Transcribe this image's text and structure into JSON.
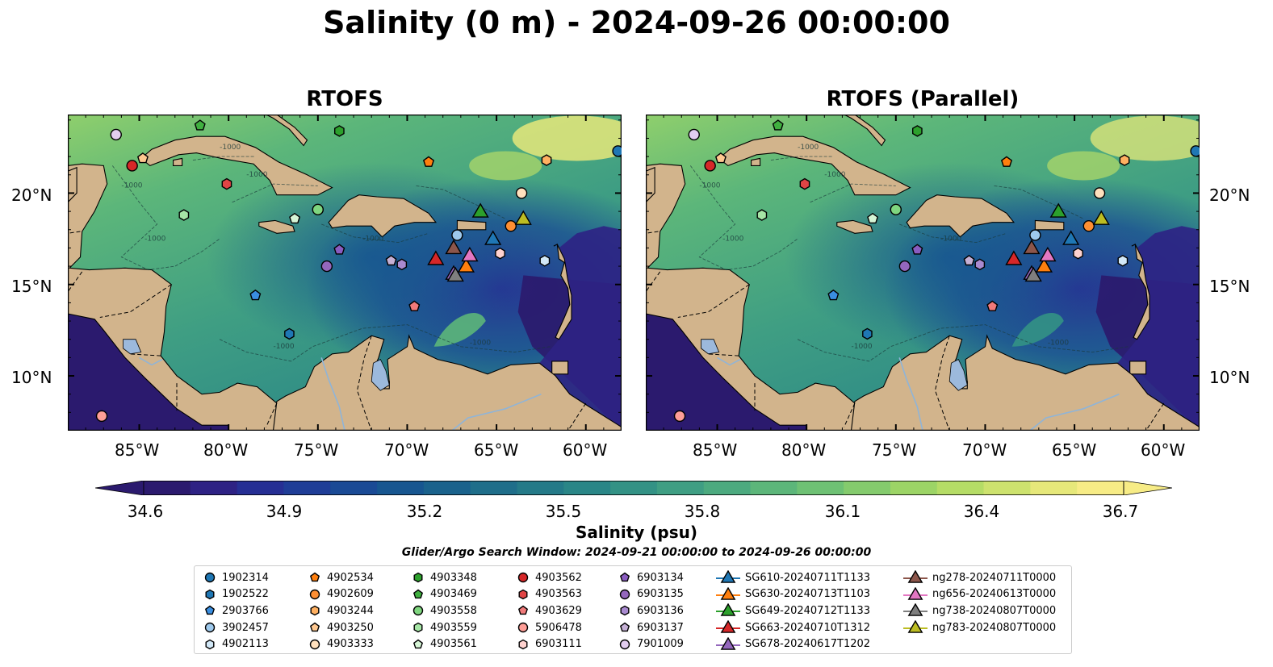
{
  "title": "Salinity (0 m) - 2024-09-26 00:00:00",
  "panels": [
    {
      "title": "RTOFS"
    },
    {
      "title": "RTOFS (Parallel)"
    }
  ],
  "lat_labels": [
    "20°N",
    "15°N",
    "10°N"
  ],
  "lon_labels": [
    "85°W",
    "80°W",
    "75°W",
    "70°W",
    "65°W",
    "60°W"
  ],
  "colorbar": {
    "ticks": [
      "34.6",
      "34.9",
      "35.2",
      "35.5",
      "35.8",
      "36.1",
      "36.4",
      "36.7"
    ],
    "label": "Salinity (psu)",
    "colors": [
      "#2b1a6e",
      "#2e2284",
      "#262f94",
      "#1f3d97",
      "#1a4a95",
      "#175690",
      "#1a628c",
      "#1f6e8a",
      "#247a88",
      "#2a8687",
      "#339285",
      "#3f9e83",
      "#4caa7f",
      "#5cb67a",
      "#6ec174",
      "#84cb6d",
      "#9cd466",
      "#b5dc66",
      "#cde26e",
      "#e6e87a",
      "#f7ec86"
    ]
  },
  "contour_label": "-1000",
  "search_window": "Glider/Argo Search Window: 2024-09-21 00:00:00 to 2024-09-26 00:00:00",
  "legend_columns": [
    [
      {
        "label": "1902314",
        "marker": "circle",
        "color": "#1f77b4"
      },
      {
        "label": "1902522",
        "marker": "hexagon",
        "color": "#1f77b4"
      },
      {
        "label": "2903766",
        "marker": "pentagon",
        "color": "#3a8ee0"
      },
      {
        "label": "3902457",
        "marker": "circle",
        "color": "#9ec9ec"
      },
      {
        "label": "4902113",
        "marker": "hexagon",
        "color": "#d2e8f7"
      }
    ],
    [
      {
        "label": "4902534",
        "marker": "pentagon",
        "color": "#ff7f0e"
      },
      {
        "label": "4902609",
        "marker": "circle",
        "color": "#ff8f33"
      },
      {
        "label": "4903244",
        "marker": "hexagon",
        "color": "#ffb061"
      },
      {
        "label": "4903250",
        "marker": "pentagon",
        "color": "#ffc890"
      },
      {
        "label": "4903333",
        "marker": "circle",
        "color": "#ffe0bd"
      }
    ],
    [
      {
        "label": "4903348",
        "marker": "hexagon",
        "color": "#2ca02c"
      },
      {
        "label": "4903469",
        "marker": "pentagon",
        "color": "#40b040"
      },
      {
        "label": "4903558",
        "marker": "circle",
        "color": "#7fd67f"
      },
      {
        "label": "4903559",
        "marker": "hexagon",
        "color": "#a6e6a6"
      },
      {
        "label": "4903561",
        "marker": "pentagon",
        "color": "#d6f5d6"
      }
    ],
    [
      {
        "label": "4903562",
        "marker": "circle",
        "color": "#d62728"
      },
      {
        "label": "4903563",
        "marker": "hexagon",
        "color": "#e04445"
      },
      {
        "label": "4903629",
        "marker": "pentagon",
        "color": "#f07a7a"
      },
      {
        "label": "5906478",
        "marker": "circle",
        "color": "#ff9e97"
      },
      {
        "label": "6903111",
        "marker": "hexagon",
        "color": "#ffd2cf"
      }
    ],
    [
      {
        "label": "6903134",
        "marker": "pentagon",
        "color": "#8a5cc0"
      },
      {
        "label": "6903135",
        "marker": "circle",
        "color": "#9467bd"
      },
      {
        "label": "6903136",
        "marker": "hexagon",
        "color": "#a98ad0"
      },
      {
        "label": "6903137",
        "marker": "pentagon",
        "color": "#c5b0d5"
      },
      {
        "label": "7901009",
        "marker": "circle",
        "color": "#e2cdf0"
      }
    ],
    [
      {
        "label": "SG610-20240711T1133",
        "marker": "triangle",
        "color": "#1f77b4"
      },
      {
        "label": "SG630-20240713T1103",
        "marker": "triangle",
        "color": "#ff7f0e"
      },
      {
        "label": "SG649-20240712T1133",
        "marker": "triangle",
        "color": "#2ca02c"
      },
      {
        "label": "SG663-20240710T1312",
        "marker": "triangle",
        "color": "#d62728"
      },
      {
        "label": "SG678-20240617T1202",
        "marker": "triangle",
        "color": "#9467bd"
      }
    ],
    [
      {
        "label": "ng278-20240711T0000",
        "marker": "triangle",
        "color": "#8c564b"
      },
      {
        "label": "ng656-20240613T0000",
        "marker": "triangle",
        "color": "#e377c2"
      },
      {
        "label": "ng738-20240807T0000",
        "marker": "triangle",
        "color": "#7f7f7f"
      },
      {
        "label": "ng783-20240807T0000",
        "marker": "triangle",
        "color": "#bcbd22"
      }
    ]
  ],
  "map_points": [
    {
      "label": "1902314",
      "lon": -58.2,
      "lat": 22.3
    },
    {
      "label": "1902522",
      "lon": -76.6,
      "lat": 12.3
    },
    {
      "label": "2903766",
      "lon": -78.5,
      "lat": 14.4
    },
    {
      "label": "3902457",
      "lon": -67.2,
      "lat": 17.7
    },
    {
      "label": "4902113",
      "lon": -62.3,
      "lat": 16.3
    },
    {
      "label": "4902534",
      "lon": -68.8,
      "lat": 21.7
    },
    {
      "label": "4902609",
      "lon": -64.2,
      "lat": 18.2
    },
    {
      "label": "4903244",
      "lon": -62.2,
      "lat": 21.8
    },
    {
      "label": "4903250",
      "lon": -84.8,
      "lat": 21.9
    },
    {
      "label": "4903333",
      "lon": -63.6,
      "lat": 20.0
    },
    {
      "label": "4903348",
      "lon": -73.8,
      "lat": 23.4
    },
    {
      "label": "4903469",
      "lon": -81.6,
      "lat": 23.7
    },
    {
      "label": "4903558",
      "lon": -75.0,
      "lat": 19.1
    },
    {
      "label": "4903559",
      "lon": -82.5,
      "lat": 18.8
    },
    {
      "label": "4903561",
      "lon": -76.3,
      "lat": 18.6
    },
    {
      "label": "4903562",
      "lon": -85.4,
      "lat": 21.5
    },
    {
      "label": "4903563",
      "lon": -80.1,
      "lat": 20.5
    },
    {
      "label": "4903629",
      "lon": -69.6,
      "lat": 13.8
    },
    {
      "label": "5906478",
      "lon": -87.1,
      "lat": 7.8
    },
    {
      "label": "6903111",
      "lon": -64.8,
      "lat": 16.7
    },
    {
      "label": "6903134",
      "lon": -73.8,
      "lat": 16.9
    },
    {
      "label": "6903135",
      "lon": -74.5,
      "lat": 16.0
    },
    {
      "label": "6903136",
      "lon": -70.3,
      "lat": 16.1
    },
    {
      "label": "6903137",
      "lon": -70.9,
      "lat": 16.3
    },
    {
      "label": "7901009",
      "lon": -86.3,
      "lat": 23.2
    },
    {
      "label": "SG610-20240711T1133",
      "lon": -65.2,
      "lat": 17.5
    },
    {
      "label": "SG630-20240713T1103",
      "lon": -66.7,
      "lat": 16.0
    },
    {
      "label": "SG649-20240712T1133",
      "lon": -65.9,
      "lat": 19.0
    },
    {
      "label": "SG663-20240710T1312",
      "lon": -68.4,
      "lat": 16.4
    },
    {
      "label": "SG678-20240617T1202",
      "lon": -67.4,
      "lat": 15.6
    },
    {
      "label": "ng278-20240711T0000",
      "lon": -67.4,
      "lat": 17.0
    },
    {
      "label": "ng656-20240613T0000",
      "lon": -66.5,
      "lat": 16.6
    },
    {
      "label": "ng738-20240807T0000",
      "lon": -67.3,
      "lat": 15.5
    },
    {
      "label": "ng783-20240807T0000",
      "lon": -63.5,
      "lat": 18.6
    }
  ]
}
